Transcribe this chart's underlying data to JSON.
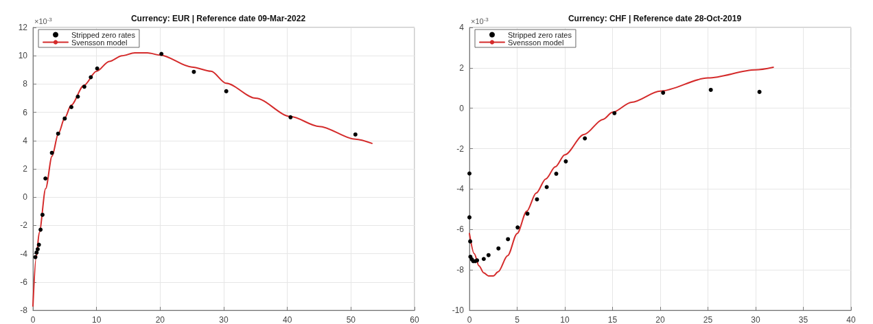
{
  "chart_data": [
    {
      "type": "scatter",
      "title": "Currency: EUR | Reference date 09-Mar-2022",
      "annotations": [
        "×10$^{-3}$"
      ],
      "xlim": [
        0,
        60
      ],
      "xticks": [
        0,
        10,
        20,
        30,
        40,
        50,
        60
      ],
      "ylim": [
        -8,
        12
      ],
      "yticks": [
        -8,
        -6,
        -4,
        -2,
        0,
        2,
        4,
        6,
        8,
        10,
        12
      ],
      "grid": true,
      "legend": "top left",
      "series": [
        {
          "name": "Stripped zero rates",
          "type": "scatter",
          "marker": "circle",
          "color": "#000000",
          "x": [
            0.38,
            0.57,
            0.75,
            0.94,
            1.2,
            1.5,
            1.96,
            2.98,
            3.96,
            5.0,
            6.04,
            7.06,
            8.08,
            9.1,
            10.1,
            20.2,
            25.3,
            30.4,
            40.5,
            50.7
          ],
          "values": [
            -4.24,
            -3.92,
            -3.68,
            -3.37,
            -2.3,
            -1.25,
            1.32,
            3.13,
            4.49,
            5.56,
            6.37,
            7.11,
            7.81,
            8.48,
            9.1,
            10.13,
            8.86,
            7.49,
            5.65,
            4.43
          ]
        },
        {
          "name": "Svensson model",
          "type": "line",
          "marker": "none",
          "line_style": "solid",
          "color": "#d42a2a",
          "x": [
            0,
            0.5,
            1,
            2,
            3,
            4,
            5,
            6,
            8,
            10,
            12,
            14,
            16,
            18,
            20,
            25,
            28,
            30.4,
            35,
            40.5,
            45,
            50.7,
            53.3
          ],
          "values": [
            -7.7,
            -4.3,
            -2.5,
            0.6,
            2.9,
            4.5,
            5.6,
            6.5,
            7.9,
            8.9,
            9.6,
            10.0,
            10.2,
            10.2,
            10.05,
            9.2,
            8.9,
            8.05,
            7.0,
            5.7,
            5.0,
            4.1,
            3.8
          ]
        }
      ]
    },
    {
      "type": "scatter",
      "title": "Currency: CHF | Reference date 28-Oct-2019",
      "annotations": [
        "×10$^{-3}$"
      ],
      "xlim": [
        0,
        40
      ],
      "xticks": [
        0,
        5,
        10,
        15,
        20,
        25,
        30,
        35,
        40
      ],
      "ylim": [
        -10,
        4
      ],
      "yticks": [
        -10,
        -8,
        -6,
        -4,
        -2,
        0,
        2,
        4
      ],
      "grid": true,
      "legend": "top left",
      "series": [
        {
          "name": "Stripped zero rates",
          "type": "scatter",
          "marker": "circle",
          "color": "#000000",
          "x": [
            0,
            0,
            0.08,
            0.1,
            0.25,
            0.4,
            0.6,
            0.8,
            1.5,
            2.0,
            3.04,
            4.04,
            5.05,
            6.08,
            7.08,
            8.1,
            9.1,
            10.1,
            12.1,
            15.2,
            20.3,
            25.3,
            30.4
          ],
          "values": [
            -3.23,
            -5.4,
            -6.59,
            -7.35,
            -7.48,
            -7.57,
            -7.57,
            -7.53,
            -7.46,
            -7.27,
            -6.94,
            -6.48,
            -5.9,
            -5.22,
            -4.51,
            -3.9,
            -3.24,
            -2.63,
            -1.49,
            -0.24,
            0.77,
            0.91,
            0.81
          ]
        },
        {
          "name": "Svensson model",
          "type": "line",
          "marker": "none",
          "line_style": "solid",
          "color": "#d42a2a",
          "x": [
            0,
            0.5,
            1,
            1.5,
            2,
            2.5,
            3,
            4,
            5,
            6,
            7,
            8,
            9,
            10,
            12,
            14,
            15,
            17,
            20,
            25,
            30,
            31.85
          ],
          "values": [
            -6.2,
            -7.2,
            -7.8,
            -8.15,
            -8.3,
            -8.3,
            -8.1,
            -7.3,
            -6.2,
            -5.1,
            -4.2,
            -3.5,
            -2.9,
            -2.3,
            -1.3,
            -0.55,
            -0.2,
            0.3,
            0.85,
            1.5,
            1.9,
            2.03
          ]
        }
      ]
    }
  ]
}
